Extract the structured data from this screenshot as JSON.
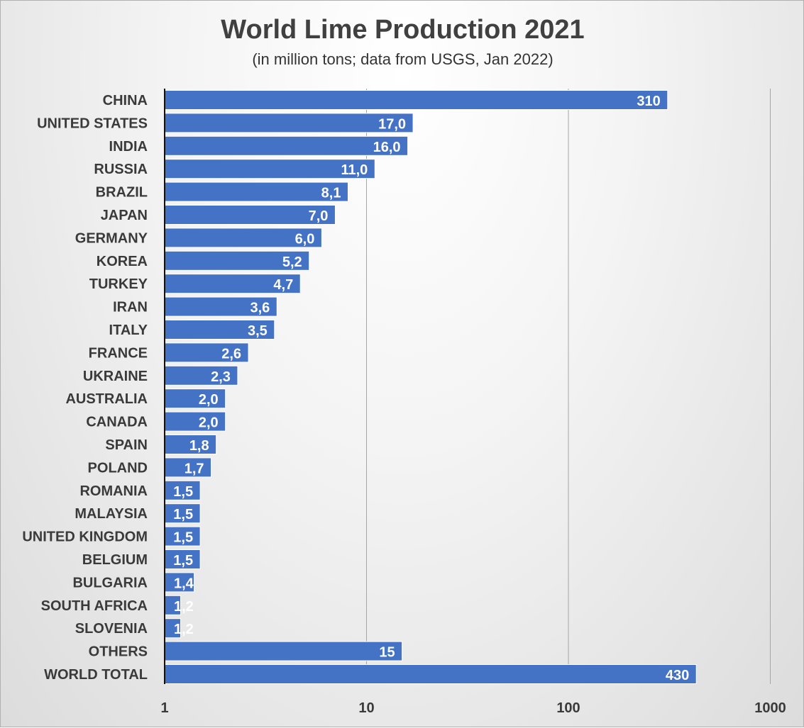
{
  "chart_data": {
    "type": "bar",
    "orientation": "horizontal",
    "title": "World Lime Production 2021",
    "subtitle": "(in million tons; data from USGS, Jan 2022)",
    "xscale": "log",
    "xlim": [
      1,
      1000
    ],
    "xticks": [
      1,
      10,
      100,
      1000
    ],
    "xtick_labels": [
      "1",
      "10",
      "100",
      "1000"
    ],
    "grid": "vertical",
    "bar_color": "#4472c4",
    "categories": [
      "CHINA",
      "UNITED STATES",
      "INDIA",
      "RUSSIA",
      "BRAZIL",
      "JAPAN",
      "GERMANY",
      "KOREA",
      "TURKEY",
      "IRAN",
      "ITALY",
      "FRANCE",
      "UKRAINE",
      "AUSTRALIA",
      "CANADA",
      "SPAIN",
      "POLAND",
      "ROMANIA",
      "MALAYSIA",
      "UNITED KINGDOM",
      "BELGIUM",
      "BULGARIA",
      "SOUTH AFRICA",
      "SLOVENIA",
      "OTHERS",
      "WORLD TOTAL"
    ],
    "values": [
      310,
      17.0,
      16.0,
      11.0,
      8.1,
      7.0,
      6.0,
      5.2,
      4.7,
      3.6,
      3.5,
      2.6,
      2.3,
      2.0,
      2.0,
      1.8,
      1.7,
      1.5,
      1.5,
      1.5,
      1.5,
      1.4,
      1.2,
      1.2,
      15,
      430
    ],
    "value_labels": [
      "310",
      "17,0",
      "16,0",
      "11,0",
      "8,1",
      "7,0",
      "6,0",
      "5,2",
      "4,7",
      "3,6",
      "3,5",
      "2,6",
      "2,3",
      "2,0",
      "2,0",
      "1,8",
      "1,7",
      "1,5",
      "1,5",
      "1,5",
      "1,5",
      "1,4",
      "1,2",
      "1,2",
      "15",
      "430"
    ]
  }
}
